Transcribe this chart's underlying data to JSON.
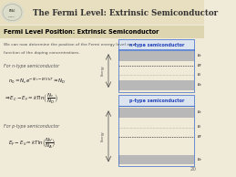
{
  "title": "The Fermi Level: Extrinsic Semiconductor",
  "subtitle": "Fermi Level Position: Extrinsic Semiconductor",
  "body_text1": "We can now determine the position of the Fermi energy level as a",
  "body_text2": "function of the doping concentrations.",
  "n_type_label": "For n-type semiconductor",
  "p_type_label": "For p-type semiconductor",
  "eq1a": "$n_0 = N_c e^{-(E_c-E_F)/kT} \\approx N_D$",
  "eq1b": "$\\Rightarrow E_C - E_F = kT\\ln\\!\\left(\\dfrac{N_c}{N_D}\\right)$",
  "eq2": "$E_F - E_V = kT\\ln\\!\\left(\\dfrac{N_V}{N_A}\\right)$",
  "n_diag_label": "n-type semiconductor",
  "p_diag_label": "p-type semiconductor",
  "page_number": "20",
  "bg_color": "#f0ead8",
  "header_bg": "#e8dfc0",
  "subtitle_bg": "#ddd5b0",
  "title_color": "#333333",
  "subtitle_color": "#000000",
  "body_color": "#555555",
  "n_label_color": "#2244bb",
  "p_label_color": "#2244bb",
  "band_color": "#b8b8b8",
  "dashed_color": "#888888",
  "border_color": "#3366cc",
  "arrow_color": "#444444",
  "logo_bg": "#ddddcc",
  "logo_color": "#555544"
}
